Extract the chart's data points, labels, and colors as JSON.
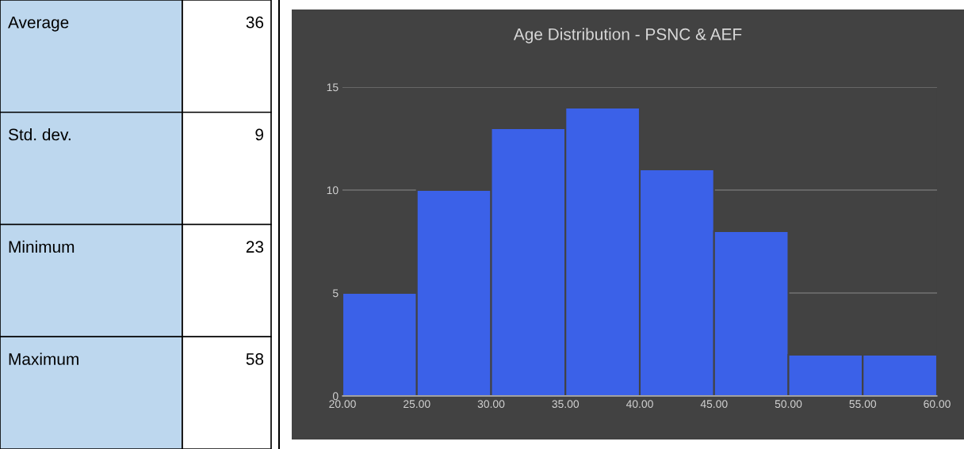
{
  "chart_data": [
    {
      "type": "other",
      "annotations": [
        "Average",
        "36",
        "Std. dev.",
        "9",
        "Minimum",
        "23",
        "Maximum",
        "58"
      ]
    },
    {
      "type": "histogram",
      "title": "Age Distribution - PSNC & AEF",
      "bins": [
        20,
        25,
        30,
        35,
        40,
        45,
        50,
        55,
        60
      ],
      "values": [
        5,
        10,
        13,
        14,
        11,
        8,
        2,
        2
      ],
      "color": "#3b61e8",
      "xlim": [
        20,
        60
      ],
      "xticks": [
        {
          "value": 20,
          "label": "20.00"
        },
        {
          "value": 25,
          "label": "25.00"
        },
        {
          "value": 30,
          "label": "30.00"
        },
        {
          "value": 35,
          "label": "35.00"
        },
        {
          "value": 40,
          "label": "40.00"
        },
        {
          "value": 45,
          "label": "45.00"
        },
        {
          "value": 50,
          "label": "50.00"
        },
        {
          "value": 55,
          "label": "55.00"
        },
        {
          "value": 60,
          "label": "60.00"
        }
      ],
      "ylim": [
        0,
        15
      ],
      "yticks": [
        0,
        5,
        10,
        15
      ],
      "grid": "y"
    }
  ]
}
